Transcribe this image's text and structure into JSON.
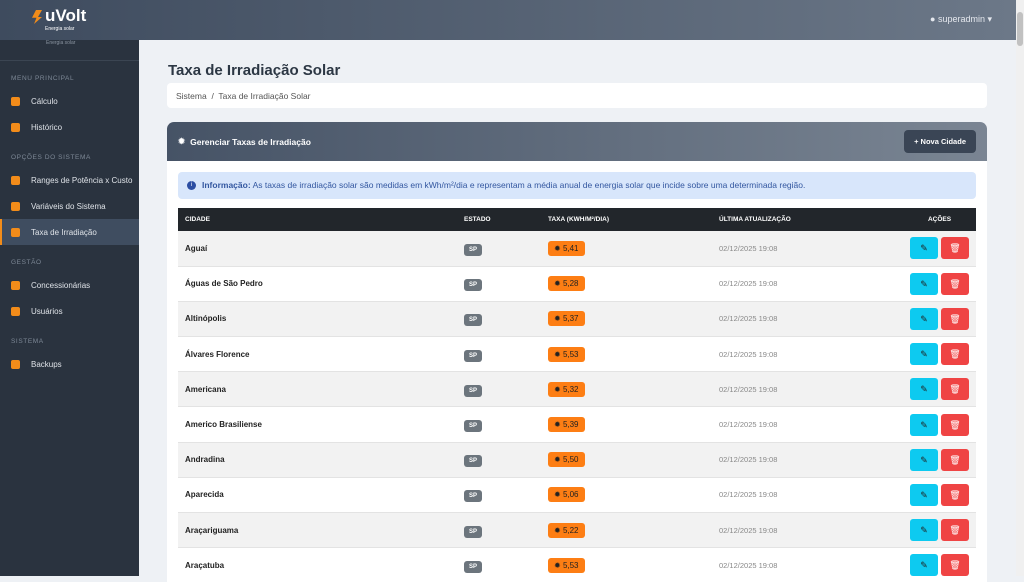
{
  "app": {
    "logo": "uVolt",
    "logo_sub": "Energia solar",
    "user": "superadmin"
  },
  "sidebar": {
    "brand_sub": "Energia solar",
    "sections": [
      {
        "title": "MENU PRINCIPAL",
        "items": [
          "Cálculo",
          "Histórico"
        ]
      },
      {
        "title": "OPÇÕES DO SISTEMA",
        "items": [
          "Ranges de Potência x Custo",
          "Variáveis do Sistema",
          "Taxa de Irradiação"
        ]
      },
      {
        "title": "GESTÃO",
        "items": [
          "Concessionárias",
          "Usuários"
        ]
      },
      {
        "title": "SISTEMA",
        "items": [
          "Backups"
        ]
      }
    ],
    "active": "Taxa de Irradiação"
  },
  "page": {
    "title": "Taxa de Irradiação Solar",
    "breadcrumb": [
      "Sistema",
      "Taxa de Irradiação Solar"
    ]
  },
  "card": {
    "title": "Gerenciar Taxas de Irradiação",
    "new_button": "+ Nova Cidade",
    "info_label": "Informação:",
    "info_text": "As taxas de irradiação solar são medidas em kWh/m²/dia e representam a média anual de energia solar que incide sobre uma determinada região."
  },
  "table": {
    "headers": [
      "CIDADE",
      "ESTADO",
      "TAXA (KWH/M²/DIA)",
      "ÚLTIMA ATUALIZAÇÃO",
      "AÇÕES"
    ],
    "rows": [
      [
        "Aguaí",
        "SP",
        "5,41",
        "02/12/2025 19:08"
      ],
      [
        "Águas de São Pedro",
        "SP",
        "5,28",
        "02/12/2025 19:08"
      ],
      [
        "Altinópolis",
        "SP",
        "5,37",
        "02/12/2025 19:08"
      ],
      [
        "Álvares Florence",
        "SP",
        "5,53",
        "02/12/2025 19:08"
      ],
      [
        "Americana",
        "SP",
        "5,32",
        "02/12/2025 19:08"
      ],
      [
        "Americo Brasiliense",
        "SP",
        "5,39",
        "02/12/2025 19:08"
      ],
      [
        "Andradina",
        "SP",
        "5,50",
        "02/12/2025 19:08"
      ],
      [
        "Aparecida",
        "SP",
        "5,06",
        "02/12/2025 19:08"
      ],
      [
        "Araçariguama",
        "SP",
        "5,22",
        "02/12/2025 19:08"
      ],
      [
        "Araçatuba",
        "SP",
        "5,53",
        "02/12/2025 19:08"
      ]
    ]
  },
  "colors": {
    "accent": "#f28c1a",
    "rate_badge": "#fd7e14",
    "edit": "#0dcaf0",
    "delete": "#ef4444"
  }
}
